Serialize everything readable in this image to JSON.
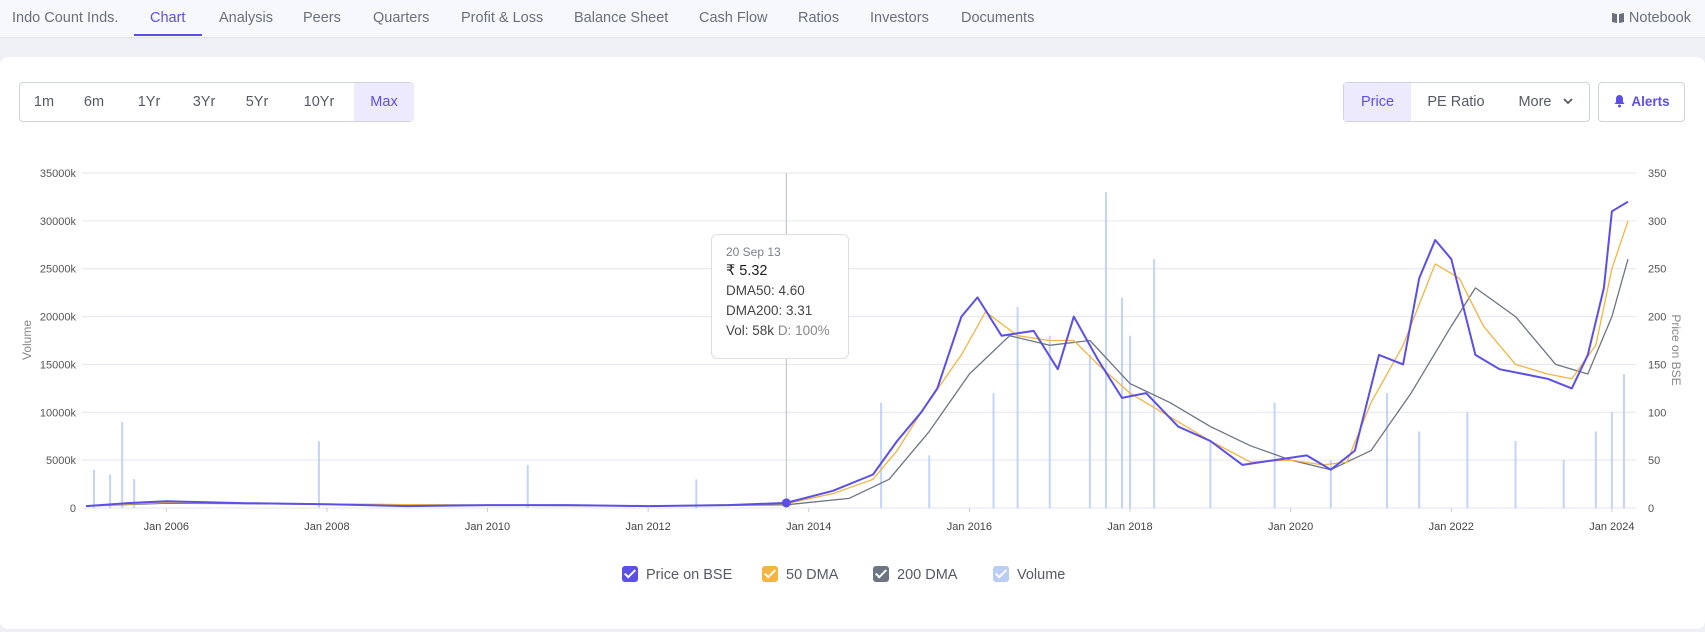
{
  "nav": {
    "items": [
      "Indo Count Inds.",
      "Chart",
      "Analysis",
      "Peers",
      "Quarters",
      "Profit & Loss",
      "Balance Sheet",
      "Cash Flow",
      "Ratios",
      "Investors",
      "Documents"
    ],
    "active_index": 1,
    "notebook_label": "Notebook"
  },
  "range_buttons": [
    "1m",
    "6m",
    "1Yr",
    "3Yr",
    "5Yr",
    "10Yr",
    "Max"
  ],
  "range_active": "Max",
  "metric_buttons": {
    "price": "Price",
    "pe": "PE Ratio",
    "more": "More"
  },
  "alerts_label": "Alerts",
  "tooltip": {
    "date": "20 Sep 13",
    "price": "₹ 5.32",
    "dma50": "DMA50: 4.60",
    "dma200": "DMA200: 3.31",
    "vol": "Vol: 58k",
    "delivery": "D: 100%"
  },
  "legend": [
    {
      "label": "Price on BSE",
      "color": "#5b4fe8"
    },
    {
      "label": "50 DMA",
      "color": "#f2b544"
    },
    {
      "label": "200 DMA",
      "color": "#6e7582"
    },
    {
      "label": "Volume",
      "color": "#b9cdf7"
    }
  ],
  "colors": {
    "accent": "#5b4fe8",
    "price": "#5b4fe8",
    "dma50": "#f2b544",
    "dma200": "#6e7582",
    "volume": "#b9cdf7"
  },
  "chart_data": {
    "type": "line",
    "ylabel_left": "Volume",
    "ylabel_right": "Price on BSE",
    "left_ticks": [
      "0",
      "5000k",
      "10000k",
      "15000k",
      "20000k",
      "25000k",
      "30000k",
      "35000k"
    ],
    "right_ticks": [
      "0",
      "50",
      "100",
      "150",
      "200",
      "250",
      "300",
      "350"
    ],
    "x_tick_labels": [
      "Jan 2006",
      "Jan 2008",
      "Jan 2010",
      "Jan 2012",
      "Jan 2014",
      "Jan 2016",
      "Jan 2018",
      "Jan 2020",
      "Jan 2022",
      "Jan 2024"
    ],
    "x_tick_years": [
      2006,
      2008,
      2010,
      2012,
      2014,
      2016,
      2018,
      2020,
      2022,
      2024
    ],
    "xlim": [
      2005.0,
      2024.3
    ],
    "ylim_left": [
      0,
      35000
    ],
    "ylim_right": [
      0,
      350
    ],
    "grid": true,
    "legend_position": "bottom",
    "crosshair_x": 2013.72,
    "series": [
      {
        "name": "Price on BSE",
        "axis": "right",
        "x": [
          2005.0,
          2005.5,
          2006.0,
          2007.0,
          2008.0,
          2009.0,
          2010.0,
          2011.0,
          2012.0,
          2013.0,
          2013.72,
          2014.3,
          2014.8,
          2015.1,
          2015.4,
          2015.6,
          2015.9,
          2016.1,
          2016.4,
          2016.8,
          2017.1,
          2017.3,
          2017.6,
          2017.9,
          2018.2,
          2018.6,
          2019.0,
          2019.4,
          2019.8,
          2020.2,
          2020.5,
          2020.8,
          2021.1,
          2021.4,
          2021.6,
          2021.8,
          2022.0,
          2022.3,
          2022.6,
          2022.9,
          2023.2,
          2023.5,
          2023.7,
          2023.9,
          2024.0,
          2024.2
        ],
        "values": [
          2,
          5,
          7,
          5,
          4,
          2,
          3,
          3,
          2,
          3,
          5.3,
          18,
          35,
          70,
          100,
          125,
          200,
          220,
          180,
          185,
          145,
          200,
          155,
          115,
          120,
          85,
          70,
          45,
          50,
          55,
          40,
          60,
          160,
          150,
          240,
          280,
          260,
          160,
          145,
          140,
          135,
          125,
          160,
          230,
          310,
          320
        ]
      },
      {
        "name": "50 DMA",
        "axis": "right",
        "x": [
          2005.0,
          2006.0,
          2008.0,
          2010.0,
          2012.0,
          2013.72,
          2014.3,
          2014.8,
          2015.1,
          2015.4,
          2015.9,
          2016.2,
          2016.6,
          2017.0,
          2017.3,
          2017.6,
          2018.0,
          2018.5,
          2019.0,
          2019.5,
          2020.0,
          2020.4,
          2020.7,
          2021.0,
          2021.4,
          2021.8,
          2022.1,
          2022.4,
          2022.8,
          2023.2,
          2023.5,
          2023.8,
          2024.0,
          2024.2
        ],
        "values": [
          2,
          6,
          4,
          3,
          2,
          4.6,
          15,
          30,
          60,
          100,
          160,
          205,
          180,
          175,
          175,
          150,
          120,
          95,
          70,
          48,
          50,
          45,
          48,
          110,
          170,
          255,
          240,
          190,
          150,
          140,
          135,
          170,
          250,
          300
        ]
      },
      {
        "name": "200 DMA",
        "axis": "right",
        "x": [
          2005.0,
          2006.0,
          2008.0,
          2010.0,
          2012.0,
          2013.72,
          2014.5,
          2015.0,
          2015.5,
          2016.0,
          2016.5,
          2017.0,
          2017.5,
          2018.0,
          2018.5,
          2019.0,
          2019.5,
          2020.0,
          2020.5,
          2021.0,
          2021.5,
          2022.0,
          2022.3,
          2022.8,
          2023.3,
          2023.7,
          2024.0,
          2024.2
        ],
        "values": [
          2,
          5,
          4,
          3,
          2,
          3.3,
          10,
          30,
          80,
          140,
          180,
          170,
          175,
          130,
          110,
          85,
          65,
          50,
          40,
          60,
          120,
          190,
          230,
          200,
          150,
          140,
          200,
          260
        ]
      },
      {
        "name": "Volume",
        "axis": "left",
        "type": "bar",
        "x": [
          2005.1,
          2005.3,
          2005.45,
          2005.6,
          2007.9,
          2010.5,
          2012.6,
          2014.9,
          2015.5,
          2016.3,
          2016.6,
          2017.0,
          2017.5,
          2017.7,
          2017.9,
          2018.0,
          2018.3,
          2019.0,
          2019.8,
          2020.5,
          2021.2,
          2021.6,
          2022.2,
          2022.8,
          2023.4,
          2023.8,
          2024.0,
          2024.15
        ],
        "values": [
          4000,
          3500,
          9000,
          3000,
          7000,
          4500,
          3000,
          11000,
          5500,
          12000,
          21000,
          18000,
          16000,
          33000,
          22000,
          18000,
          26000,
          7000,
          11000,
          5000,
          12000,
          8000,
          10000,
          7000,
          5000,
          8000,
          10000,
          14000
        ]
      }
    ]
  }
}
